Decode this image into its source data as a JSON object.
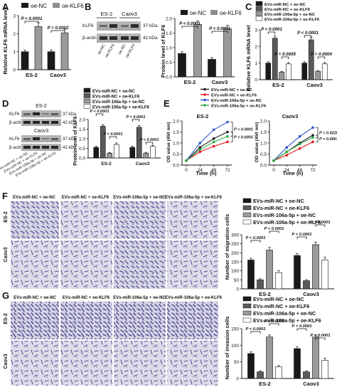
{
  "panel_letters": [
    "A",
    "B",
    "C",
    "D",
    "E",
    "F",
    "G"
  ],
  "colors": {
    "black": "#1a1a1a",
    "dark_grey": "#5a5a5a",
    "light_grey": "#9a9a9a",
    "lighter_grey": "#d6d6d6",
    "white": "#ffffff",
    "line_black": "#1a1a1a",
    "line_red": "#e41a1c",
    "line_blue": "#2f56c9",
    "line_green": "#2ea843",
    "micro_bg": "#d9dbe6",
    "micro_cell": "#5f4d97"
  },
  "panel_A": {
    "legend": [
      "oe-NC",
      "oe-KLF6"
    ],
    "ylabel": "Relative KLF6 mRNA level",
    "yticks": [
      "0",
      "1",
      "2",
      "3"
    ],
    "groups": [
      "ES-2",
      "Caov3"
    ],
    "pvalues": [
      "P < 0.0001",
      "P = 0.0002"
    ]
  },
  "panel_B": {
    "letter": "B",
    "blot_groups": [
      "ES-2",
      "Caov3"
    ],
    "blot_rows": [
      {
        "name": "KLF6",
        "size": "37 kDa"
      },
      {
        "name": "β-actin",
        "size": "42 kDa"
      }
    ],
    "lane_labels": [
      "oe-NC",
      "oe-KLF6",
      "oe-NC",
      "oe-KLF6"
    ],
    "legend": [
      "oe-NC",
      "oe-KLF6"
    ],
    "ylabel": "Protein level of KLF6",
    "yticks": [
      "0.0",
      "0.5",
      "1.0",
      "1.5",
      "2.0"
    ],
    "groups": [
      "ES-2",
      "Caov3"
    ],
    "pvalues": [
      "P < 0.0001",
      "P < 0.0001"
    ]
  },
  "panel_C": {
    "legend": [
      "EVs-miR-NC + oe-NC",
      "EVs-miR-NC + oe-KLF6",
      "EVs-miR-106a-5p + oe-NC",
      "EVs-miR-106a-5p + oe-KLF6"
    ],
    "ylabel": "Relative KLF6 mRNA level",
    "yticks": [
      "0",
      "1",
      "2",
      "3"
    ],
    "groups": [
      "ES-2",
      "Caov3"
    ],
    "pvalues": [
      "P < 0.0001",
      "P = 0.0005",
      "P < 0.0001",
      "P = 0.0004"
    ]
  },
  "panel_D": {
    "blot_groups": [
      "ES-2",
      "Caov3"
    ],
    "blot_rows": [
      {
        "name": "KLF6",
        "size": "37 kDa"
      },
      {
        "name": "β-actin",
        "size": "42 kDa"
      }
    ],
    "lane_labels": [
      "EVs-miR-NC + oe-NC",
      "EVs-miR-NC + oe-KLF6",
      "EVs-miR-106a-5p + oe-NC",
      "EVs-miR-106a-5p + oe-KLF6"
    ],
    "legend": [
      "EVs-miR-NC + oe-NC",
      "EVs-miR-NC + oe-KLF6",
      "EVs-miR-106a-5p + oe-NC",
      "EVs-miR-106a-5p + oe-KLF6"
    ],
    "ylabel": "Protein level of KLF6",
    "yticks": [
      "0.0",
      "0.5",
      "1.0",
      "1.5",
      "2.0"
    ],
    "groups": [
      "ES-2",
      "Caov3"
    ],
    "pvalues": [
      "P < 0.0001",
      "P < 0.0001",
      "P < 0.0001",
      "P < 0.0001"
    ]
  },
  "panel_E": {
    "legend": [
      "EVs-miR-NC + oe-NC",
      "EVs-miR-NC + oe-KLF6",
      "EVs-miR-106a-5p + oe-NC",
      "EVs-miR-106a-5p + oe-KLF6"
    ],
    "ylabel": "OD value (450 nm)",
    "xlabel": "Time (h)",
    "xticks": [
      "0",
      "24",
      "48",
      "72"
    ],
    "yticks": [
      "0.0",
      "0.5",
      "1.0",
      "1.5",
      "2.0"
    ],
    "plot_titles": [
      "ES-2",
      "Caov3"
    ],
    "pvalues_es2": [
      "P < 0.0001",
      "P < 0.0001"
    ],
    "pvalues_caov3": [
      "P < 0.0001",
      "P = 0.0220"
    ]
  },
  "panel_F": {
    "col_titles": [
      "EVs-miR-NC + oe-NC",
      "EVs-miR-NC + oe-KLF6",
      "EVs-miR-106a-5p + oe-NC",
      "EVs-miR-106a-5p + oe-KLF6"
    ],
    "row_labels": [
      "ES-2",
      "Caov3"
    ],
    "legend": [
      "EVs-miR-NC + oe-NC",
      "EVs-miR-NC + oe-KLF6",
      "EVs-miR-106a-5p + oe-NC",
      "EVs-miR-106a-5p + oe-KLF6"
    ],
    "ylabel": "Number of migration cells",
    "yticks": [
      "0",
      "50",
      "100",
      "150",
      "200",
      "250",
      "300"
    ],
    "groups": [
      "ES-2",
      "Caov3"
    ],
    "pvalues": [
      "P < 0.0001",
      "P < 0.0001",
      "P < 0.0001",
      "P < 0.0001"
    ]
  },
  "panel_G": {
    "col_titles": [
      "EVs-miR-NC + oe-NC",
      "EVs-miR-NC + oe-KLF6",
      "EVs-miR-106a-5p + oe-NC",
      "EVs-miR-106a-5p + oe-KLF6"
    ],
    "row_labels": [
      "ES-2",
      "Caov3"
    ],
    "legend": [
      "EVs-miR-NC + oe-NC",
      "EVs-miR-NC + oe-KLF6",
      "EVs-miR-106a-5p + oe-NC",
      "EVs-miR-106a-5p + oe-KLF6"
    ],
    "ylabel": "Number of invasion cells",
    "yticks": [
      "0",
      "50",
      "100",
      "150"
    ],
    "groups": [
      "ES-2",
      "Caov3"
    ],
    "pvalues": [
      "P < 0.0001",
      "P < 0.0001",
      "P < 0.0001",
      "P < 0.0001"
    ]
  },
  "chart_data": [
    {
      "id": "A",
      "type": "bar",
      "categories": [
        "ES-2",
        "Caov3"
      ],
      "ylabel": "Relative KLF6 mRNA level",
      "ylim": [
        0,
        3
      ],
      "series": [
        {
          "name": "oe-NC",
          "values": [
            1.0,
            1.0
          ],
          "errors": [
            0.08,
            0.1
          ]
        },
        {
          "name": "oe-KLF6",
          "values": [
            2.4,
            2.05
          ],
          "errors": [
            0.2,
            0.2
          ]
        }
      ]
    },
    {
      "id": "B",
      "type": "bar",
      "categories": [
        "ES-2",
        "Caov3"
      ],
      "ylabel": "Protein level of KLF6",
      "ylim": [
        0,
        2
      ],
      "series": [
        {
          "name": "oe-NC",
          "values": [
            0.8,
            0.6
          ],
          "errors": [
            0.06,
            0.06
          ]
        },
        {
          "name": "oe-KLF6",
          "values": [
            1.8,
            1.65
          ],
          "errors": [
            0.12,
            0.12
          ]
        }
      ]
    },
    {
      "id": "C",
      "type": "bar",
      "categories": [
        "ES-2",
        "Caov3"
      ],
      "ylabel": "Relative KLF6 mRNA level",
      "ylim": [
        0,
        3
      ],
      "series": [
        {
          "name": "EVs-miR-NC + oe-NC",
          "values": [
            1.0,
            1.0
          ],
          "errors": [
            0.08,
            0.08
          ]
        },
        {
          "name": "EVs-miR-NC + oe-KLF6",
          "values": [
            2.5,
            2.4
          ],
          "errors": [
            0.15,
            0.15
          ]
        },
        {
          "name": "EVs-miR-106a-5p + oe-NC",
          "values": [
            0.45,
            0.5
          ],
          "errors": [
            0.05,
            0.06
          ]
        },
        {
          "name": "EVs-miR-106a-5p + oe-KLF6",
          "values": [
            0.95,
            0.95
          ],
          "errors": [
            0.08,
            0.08
          ]
        }
      ]
    },
    {
      "id": "D",
      "type": "bar",
      "categories": [
        "ES-2",
        "Caov3"
      ],
      "ylabel": "Protein level of KLF6",
      "ylim": [
        0,
        2
      ],
      "series": [
        {
          "name": "EVs-miR-NC + oe-NC",
          "values": [
            0.55,
            0.55
          ],
          "errors": [
            0.06,
            0.06
          ]
        },
        {
          "name": "EVs-miR-NC + oe-KLF6",
          "values": [
            1.65,
            1.6
          ],
          "errors": [
            0.08,
            0.08
          ]
        },
        {
          "name": "EVs-miR-106a-5p + oe-NC",
          "values": [
            0.25,
            0.25
          ],
          "errors": [
            0.04,
            0.04
          ]
        },
        {
          "name": "EVs-miR-106a-5p + oe-KLF6",
          "values": [
            0.7,
            0.6
          ],
          "errors": [
            0.08,
            0.06
          ]
        }
      ]
    },
    {
      "id": "E1",
      "type": "line",
      "title": "ES-2",
      "x": [
        0,
        24,
        48,
        72
      ],
      "xlabel": "Time (h)",
      "ylabel": "OD value (450 nm)",
      "ylim": [
        0,
        2
      ],
      "series": [
        {
          "name": "EVs-miR-NC + oe-NC",
          "values": [
            0.2,
            0.8,
            1.2,
            1.5
          ]
        },
        {
          "name": "EVs-miR-NC + oe-KLF6",
          "values": [
            0.2,
            0.6,
            0.85,
            1.05
          ]
        },
        {
          "name": "EVs-miR-106a-5p + oe-NC",
          "values": [
            0.2,
            1.0,
            1.6,
            1.95
          ]
        },
        {
          "name": "EVs-miR-106a-5p + oe-KLF6",
          "values": [
            0.2,
            0.7,
            1.05,
            1.3
          ]
        }
      ]
    },
    {
      "id": "E2",
      "type": "line",
      "title": "Caov3",
      "x": [
        0,
        24,
        48,
        72
      ],
      "xlabel": "Time (h)",
      "ylabel": "OD value (450 nm)",
      "ylim": [
        0,
        2
      ],
      "series": [
        {
          "name": "EVs-miR-NC + oe-NC",
          "values": [
            0.2,
            0.6,
            1.0,
            1.35
          ]
        },
        {
          "name": "EVs-miR-NC + oe-KLF6",
          "values": [
            0.2,
            0.45,
            0.75,
            1.05
          ]
        },
        {
          "name": "EVs-miR-106a-5p + oe-NC",
          "values": [
            0.2,
            0.8,
            1.3,
            1.7
          ]
        },
        {
          "name": "EVs-miR-106a-5p + oe-KLF6",
          "values": [
            0.2,
            0.6,
            0.95,
            1.25
          ]
        }
      ]
    },
    {
      "id": "F",
      "type": "bar",
      "categories": [
        "ES-2",
        "Caov3"
      ],
      "ylabel": "Number of migration cells",
      "ylim": [
        0,
        300
      ],
      "series": [
        {
          "name": "EVs-miR-NC + oe-NC",
          "values": [
            160,
            185
          ],
          "errors": [
            10,
            10
          ]
        },
        {
          "name": "EVs-miR-NC + oe-KLF6",
          "values": [
            50,
            45
          ],
          "errors": [
            6,
            6
          ]
        },
        {
          "name": "EVs-miR-106a-5p + oe-NC",
          "values": [
            215,
            245
          ],
          "errors": [
            15,
            15
          ]
        },
        {
          "name": "EVs-miR-106a-5p + oe-KLF6",
          "values": [
            90,
            160
          ],
          "errors": [
            10,
            15
          ]
        }
      ]
    },
    {
      "id": "G",
      "type": "bar",
      "categories": [
        "ES-2",
        "Caov3"
      ],
      "ylabel": "Number of invasion cells",
      "ylim": [
        0,
        150
      ],
      "series": [
        {
          "name": "EVs-miR-NC + oe-NC",
          "values": [
            75,
            90
          ],
          "errors": [
            5,
            6
          ]
        },
        {
          "name": "EVs-miR-NC + oe-KLF6",
          "values": [
            20,
            20
          ],
          "errors": [
            3,
            3
          ]
        },
        {
          "name": "EVs-miR-106a-5p + oe-NC",
          "values": [
            125,
            125
          ],
          "errors": [
            6,
            6
          ]
        },
        {
          "name": "EVs-miR-106a-5p + oe-KLF6",
          "values": [
            35,
            55
          ],
          "errors": [
            4,
            6
          ]
        }
      ]
    }
  ]
}
